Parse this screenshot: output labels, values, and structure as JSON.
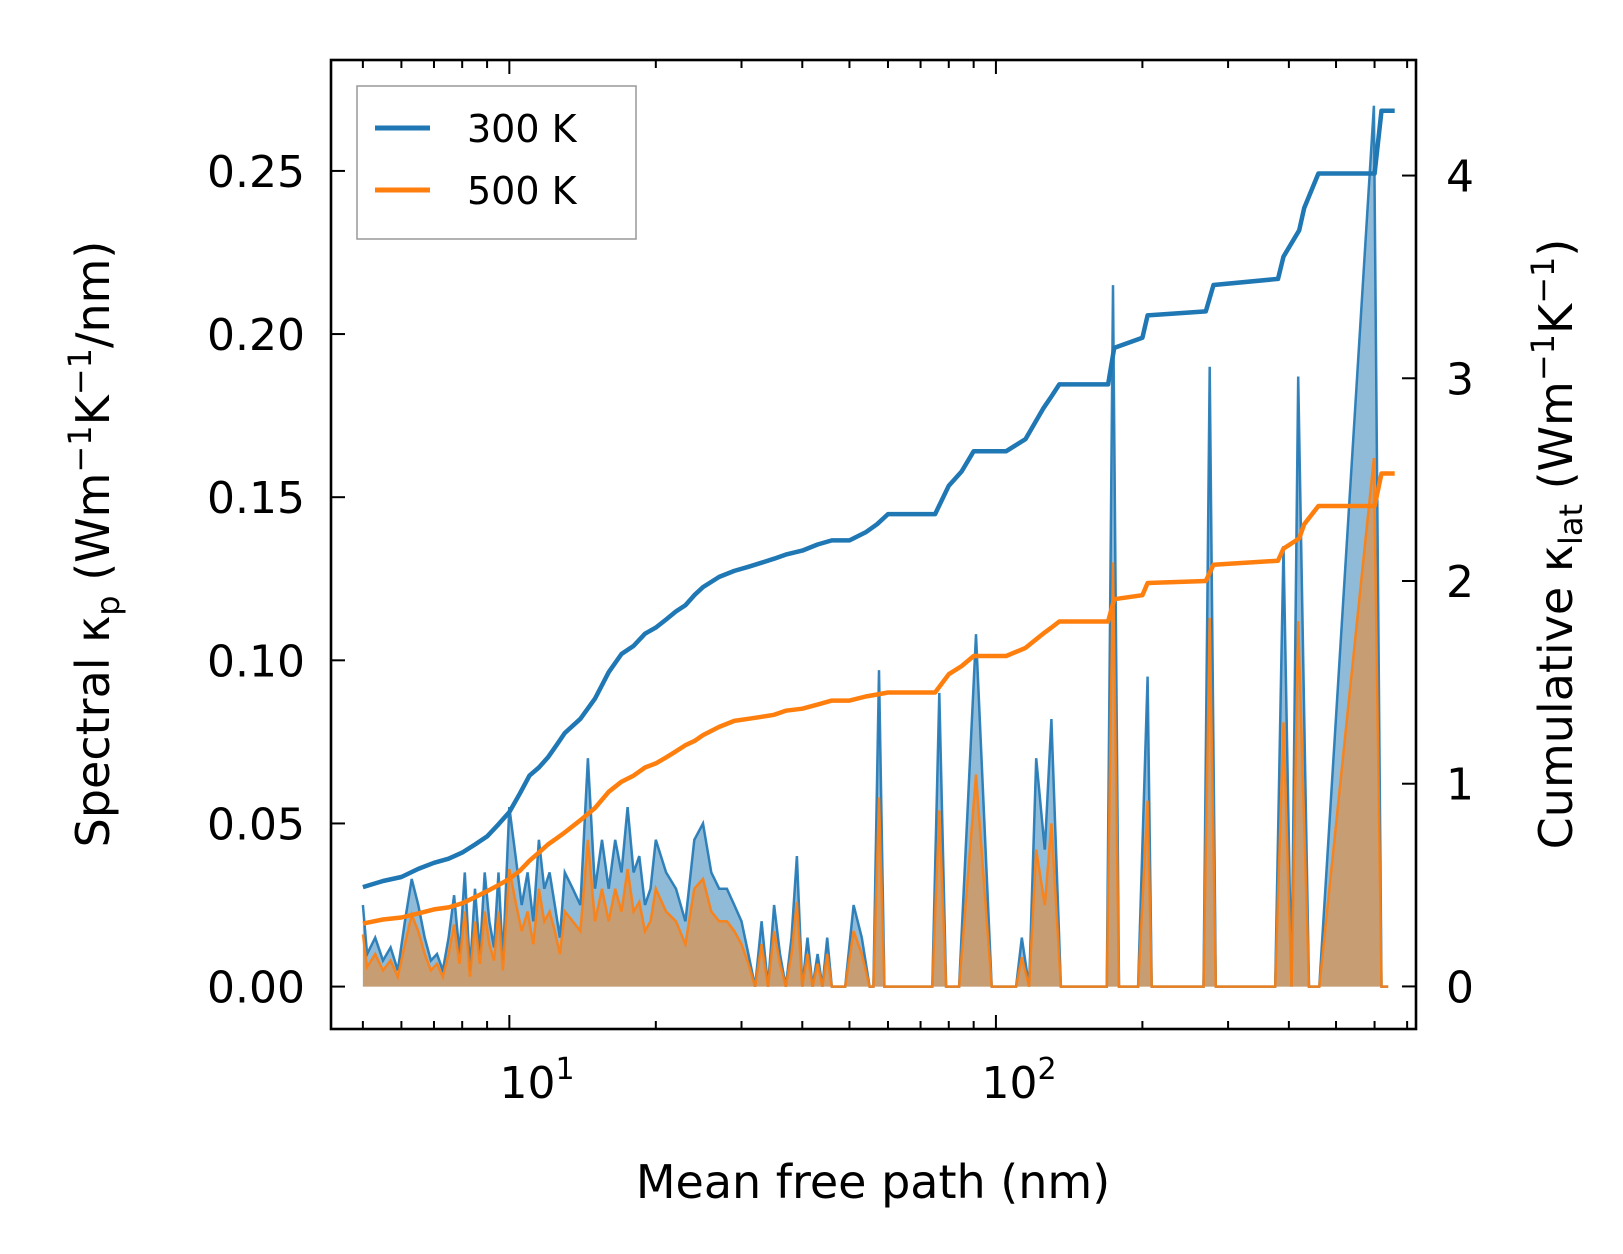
{
  "chart_data": {
    "type": "line",
    "title": "",
    "xlabel": "Mean free path (nm)",
    "xscale": "log",
    "xlim": [
      4.3,
      730
    ],
    "x_ticks": [
      {
        "base": "10",
        "exp": "1"
      },
      {
        "base": "10",
        "exp": "2"
      }
    ],
    "ylabel_left": {
      "pre": "Spectral κ",
      "sub": "p",
      "post": " (Wm",
      "sup1": "−1",
      "mid": "K",
      "sup2": "−1",
      "end": "/nm)"
    },
    "ylabel_right": {
      "pre": "Cumulative κ",
      "sub": "lat",
      "post": " (Wm",
      "sup1": "−1",
      "mid": "K",
      "sup2": "−1",
      "end": ")"
    },
    "ylim_left": [
      -0.013,
      0.284
    ],
    "ylim_right": [
      -0.21,
      4.57
    ],
    "yticks_left": [
      "0.00",
      "0.05",
      "0.10",
      "0.15",
      "0.20",
      "0.25"
    ],
    "yticks_left_values": [
      0,
      0.05,
      0.1,
      0.15,
      0.2,
      0.25
    ],
    "yticks_right": [
      "0",
      "1",
      "2",
      "3",
      "4"
    ],
    "yticks_right_values": [
      0,
      1,
      2,
      3,
      4
    ],
    "legend": {
      "location": "top-left",
      "entries": [
        "300 K",
        "500 K"
      ]
    },
    "series": [
      {
        "name": "300 K",
        "color": "#1f77b4",
        "axis": "right",
        "role": "cumulative",
        "x": [
          5.0,
          5.5,
          6.0,
          6.5,
          7.0,
          7.5,
          8.0,
          8.5,
          9.0,
          9.5,
          10.0,
          10.5,
          11.0,
          11.5,
          12.0,
          12.5,
          13.0,
          14.0,
          15.0,
          16.0,
          17.0,
          18.0,
          19.0,
          20.0,
          21.0,
          22.0,
          23.0,
          24.0,
          25.0,
          27.0,
          29.0,
          31.0,
          33.0,
          35.0,
          37.0,
          40.0,
          43.0,
          46.0,
          50.0,
          54.0,
          57.0,
          60.0,
          75.0,
          80.0,
          85.0,
          90.0,
          105.0,
          115.0,
          125.0,
          130.0,
          135.0,
          170.0,
          175.0,
          200.0,
          205.0,
          270.0,
          280.0,
          380.0,
          390.0,
          420.0,
          430.0,
          460.0,
          600.0,
          620.0,
          660.0
        ],
        "values": [
          0.49,
          0.52,
          0.54,
          0.58,
          0.61,
          0.63,
          0.66,
          0.7,
          0.74,
          0.8,
          0.86,
          0.95,
          1.04,
          1.08,
          1.13,
          1.19,
          1.25,
          1.32,
          1.42,
          1.55,
          1.64,
          1.68,
          1.74,
          1.77,
          1.81,
          1.85,
          1.88,
          1.93,
          1.97,
          2.02,
          2.05,
          2.07,
          2.09,
          2.11,
          2.13,
          2.15,
          2.18,
          2.2,
          2.2,
          2.24,
          2.28,
          2.33,
          2.33,
          2.47,
          2.54,
          2.64,
          2.64,
          2.7,
          2.85,
          2.91,
          2.97,
          2.97,
          3.15,
          3.2,
          3.31,
          3.33,
          3.46,
          3.49,
          3.6,
          3.73,
          3.84,
          4.01,
          4.01,
          4.32,
          4.32
        ]
      },
      {
        "name": "500 K",
        "color": "#ff7f0e",
        "axis": "right",
        "role": "cumulative",
        "x": [
          5.0,
          5.5,
          6.0,
          6.5,
          7.0,
          7.5,
          8.0,
          8.5,
          9.0,
          9.5,
          10.0,
          10.5,
          11.0,
          11.5,
          12.0,
          12.5,
          13.0,
          14.0,
          15.0,
          16.0,
          17.0,
          18.0,
          19.0,
          20.0,
          21.0,
          22.0,
          23.0,
          24.0,
          25.0,
          27.0,
          29.0,
          31.0,
          33.0,
          35.0,
          37.0,
          40.0,
          43.0,
          46.0,
          50.0,
          54.0,
          57.0,
          60.0,
          75.0,
          80.0,
          85.0,
          90.0,
          105.0,
          115.0,
          125.0,
          130.0,
          135.0,
          170.0,
          175.0,
          200.0,
          205.0,
          270.0,
          280.0,
          380.0,
          390.0,
          420.0,
          430.0,
          460.0,
          600.0,
          620.0,
          660.0
        ],
        "values": [
          0.31,
          0.33,
          0.34,
          0.36,
          0.38,
          0.39,
          0.41,
          0.44,
          0.47,
          0.5,
          0.53,
          0.57,
          0.62,
          0.66,
          0.7,
          0.73,
          0.76,
          0.82,
          0.88,
          0.96,
          1.01,
          1.04,
          1.08,
          1.1,
          1.13,
          1.16,
          1.19,
          1.21,
          1.24,
          1.28,
          1.31,
          1.32,
          1.33,
          1.34,
          1.36,
          1.37,
          1.39,
          1.41,
          1.41,
          1.43,
          1.44,
          1.45,
          1.45,
          1.54,
          1.58,
          1.63,
          1.63,
          1.67,
          1.74,
          1.77,
          1.8,
          1.8,
          1.91,
          1.93,
          1.99,
          2.0,
          2.08,
          2.1,
          2.16,
          2.21,
          2.28,
          2.37,
          2.37,
          2.53,
          2.53
        ]
      },
      {
        "name": "300 K spectral",
        "color": "#1f77b4",
        "axis": "left",
        "role": "spectral",
        "x": [
          5.0,
          5.1,
          5.3,
          5.5,
          5.7,
          5.9,
          6.1,
          6.3,
          6.5,
          6.7,
          6.9,
          7.1,
          7.3,
          7.5,
          7.7,
          7.9,
          8.1,
          8.3,
          8.5,
          8.7,
          8.9,
          9.1,
          9.3,
          9.5,
          9.7,
          10.0,
          10.3,
          10.6,
          10.9,
          11.2,
          11.5,
          11.8,
          12.1,
          12.4,
          12.7,
          13.0,
          13.5,
          14.0,
          14.5,
          15.0,
          15.5,
          16.0,
          16.5,
          17.0,
          17.5,
          18.0,
          18.5,
          19.0,
          19.5,
          20.0,
          21.0,
          22.0,
          23.0,
          24.0,
          25.0,
          26.0,
          27.0,
          28.0,
          29.0,
          30.0,
          31.0,
          32.0,
          33.0,
          34.0,
          35.0,
          36.0,
          37.0,
          38.0,
          39.0,
          40.0,
          41.0,
          42.0,
          43.0,
          44.0,
          45.0,
          46.0,
          47.0,
          49.0,
          51.0,
          53.0,
          55.0,
          56.0,
          57.5,
          59.0,
          60.5,
          74.0,
          76.5,
          79.0,
          84.0,
          91.0,
          98.0,
          110.0,
          113.0,
          117.0,
          121.0,
          126.0,
          130.0,
          136.0,
          141.0,
          169.0,
          174.0,
          179.0,
          196.0,
          205.0,
          209.0,
          267.0,
          275.0,
          283.0,
          375.0,
          390.0,
          405.0,
          418.0,
          440.0,
          462.0,
          598.0,
          620.0,
          640.0
        ],
        "values": [
          0.025,
          0.01,
          0.015,
          0.008,
          0.012,
          0.005,
          0.02,
          0.033,
          0.025,
          0.015,
          0.008,
          0.01,
          0.005,
          0.015,
          0.028,
          0.01,
          0.035,
          0.005,
          0.03,
          0.01,
          0.035,
          0.02,
          0.012,
          0.035,
          0.008,
          0.055,
          0.04,
          0.025,
          0.035,
          0.02,
          0.045,
          0.03,
          0.035,
          0.025,
          0.015,
          0.035,
          0.03,
          0.025,
          0.07,
          0.03,
          0.045,
          0.03,
          0.045,
          0.035,
          0.055,
          0.035,
          0.04,
          0.025,
          0.03,
          0.045,
          0.035,
          0.03,
          0.02,
          0.045,
          0.05,
          0.035,
          0.03,
          0.03,
          0.025,
          0.02,
          0.01,
          0.0,
          0.02,
          0.0,
          0.025,
          0.01,
          0.0,
          0.015,
          0.04,
          0.0,
          0.015,
          0.0,
          0.01,
          0.0,
          0.015,
          0.0,
          0.0,
          0.0,
          0.025,
          0.015,
          0.0,
          0.0,
          0.097,
          0.0,
          0.0,
          0.0,
          0.09,
          0.0,
          0.0,
          0.108,
          0.0,
          0.0,
          0.015,
          0.0,
          0.07,
          0.042,
          0.082,
          0.0,
          0.0,
          0.0,
          0.215,
          0.0,
          0.0,
          0.095,
          0.0,
          0.0,
          0.19,
          0.0,
          0.0,
          0.135,
          0.0,
          0.187,
          0.0,
          0.0,
          0.27,
          0.0,
          0.0
        ]
      },
      {
        "name": "500 K spectral",
        "color": "#ff7f0e",
        "axis": "left",
        "role": "spectral",
        "x": [
          5.0,
          5.1,
          5.3,
          5.5,
          5.7,
          5.9,
          6.1,
          6.3,
          6.5,
          6.7,
          6.9,
          7.1,
          7.3,
          7.5,
          7.7,
          7.9,
          8.1,
          8.3,
          8.5,
          8.7,
          8.9,
          9.1,
          9.3,
          9.5,
          9.7,
          10.0,
          10.3,
          10.6,
          10.9,
          11.2,
          11.5,
          11.8,
          12.1,
          12.4,
          12.7,
          13.0,
          13.5,
          14.0,
          14.5,
          15.0,
          15.5,
          16.0,
          16.5,
          17.0,
          17.5,
          18.0,
          18.5,
          19.0,
          19.5,
          20.0,
          21.0,
          22.0,
          23.0,
          24.0,
          25.0,
          26.0,
          27.0,
          28.0,
          29.0,
          30.0,
          31.0,
          32.0,
          33.0,
          34.0,
          35.0,
          36.0,
          37.0,
          38.0,
          39.0,
          40.0,
          41.0,
          42.0,
          43.0,
          44.0,
          45.0,
          46.0,
          47.0,
          49.0,
          51.0,
          53.0,
          55.0,
          56.0,
          57.5,
          59.0,
          60.5,
          74.0,
          76.5,
          79.0,
          84.0,
          91.0,
          98.0,
          110.0,
          113.0,
          117.0,
          121.0,
          126.0,
          130.0,
          136.0,
          141.0,
          169.0,
          174.0,
          179.0,
          196.0,
          205.0,
          209.0,
          267.0,
          275.0,
          283.0,
          375.0,
          390.0,
          405.0,
          418.0,
          440.0,
          462.0,
          598.0,
          620.0,
          640.0
        ],
        "values": [
          0.016,
          0.006,
          0.01,
          0.005,
          0.008,
          0.003,
          0.013,
          0.022,
          0.017,
          0.01,
          0.005,
          0.007,
          0.003,
          0.01,
          0.019,
          0.007,
          0.023,
          0.003,
          0.02,
          0.007,
          0.023,
          0.013,
          0.008,
          0.023,
          0.005,
          0.036,
          0.026,
          0.017,
          0.023,
          0.013,
          0.03,
          0.02,
          0.023,
          0.017,
          0.01,
          0.023,
          0.02,
          0.017,
          0.045,
          0.02,
          0.03,
          0.02,
          0.03,
          0.023,
          0.036,
          0.023,
          0.026,
          0.017,
          0.02,
          0.03,
          0.023,
          0.02,
          0.013,
          0.03,
          0.033,
          0.023,
          0.02,
          0.02,
          0.017,
          0.013,
          0.007,
          0.0,
          0.013,
          0.0,
          0.017,
          0.007,
          0.0,
          0.01,
          0.026,
          0.0,
          0.01,
          0.0,
          0.007,
          0.0,
          0.01,
          0.0,
          0.0,
          0.0,
          0.017,
          0.01,
          0.0,
          0.0,
          0.058,
          0.0,
          0.0,
          0.0,
          0.054,
          0.0,
          0.0,
          0.065,
          0.0,
          0.0,
          0.009,
          0.0,
          0.042,
          0.025,
          0.05,
          0.0,
          0.0,
          0.0,
          0.13,
          0.0,
          0.0,
          0.057,
          0.0,
          0.0,
          0.113,
          0.0,
          0.0,
          0.081,
          0.0,
          0.112,
          0.0,
          0.0,
          0.162,
          0.0,
          0.0
        ]
      }
    ]
  }
}
